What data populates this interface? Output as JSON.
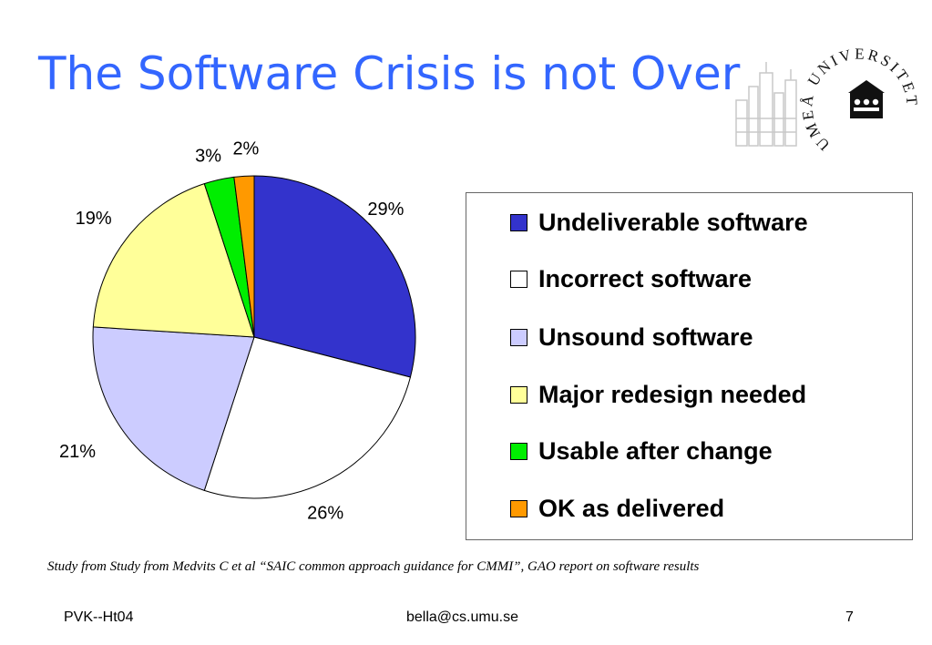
{
  "slide": {
    "title": "The Software Crisis is not Over",
    "citation": "Study from Study from Medvits C et al “SAIC  common approach guidance for CMMI”, GAO report on software results",
    "footer_left": "PVK--Ht04",
    "footer_center": "bella@cs.umu.se",
    "footer_right": "7",
    "logo_text": "UMEÅ UNIVERSITET"
  },
  "chart_data": {
    "type": "pie",
    "categories": [
      "Undeliverable software",
      "Incorrect software",
      "Unsound software",
      "Major redesign needed",
      "Usable after change",
      "OK as delivered"
    ],
    "values": [
      29,
      26,
      21,
      19,
      3,
      2
    ],
    "data_labels": [
      "29%",
      "26%",
      "21%",
      "19%",
      "3%",
      "2%"
    ],
    "colors": [
      "#3333cc",
      "#ffffff",
      "#ccccff",
      "#ffff99",
      "#00ee00",
      "#ff9900"
    ],
    "legend_position": "right",
    "start": "top",
    "direction": "clockwise"
  }
}
